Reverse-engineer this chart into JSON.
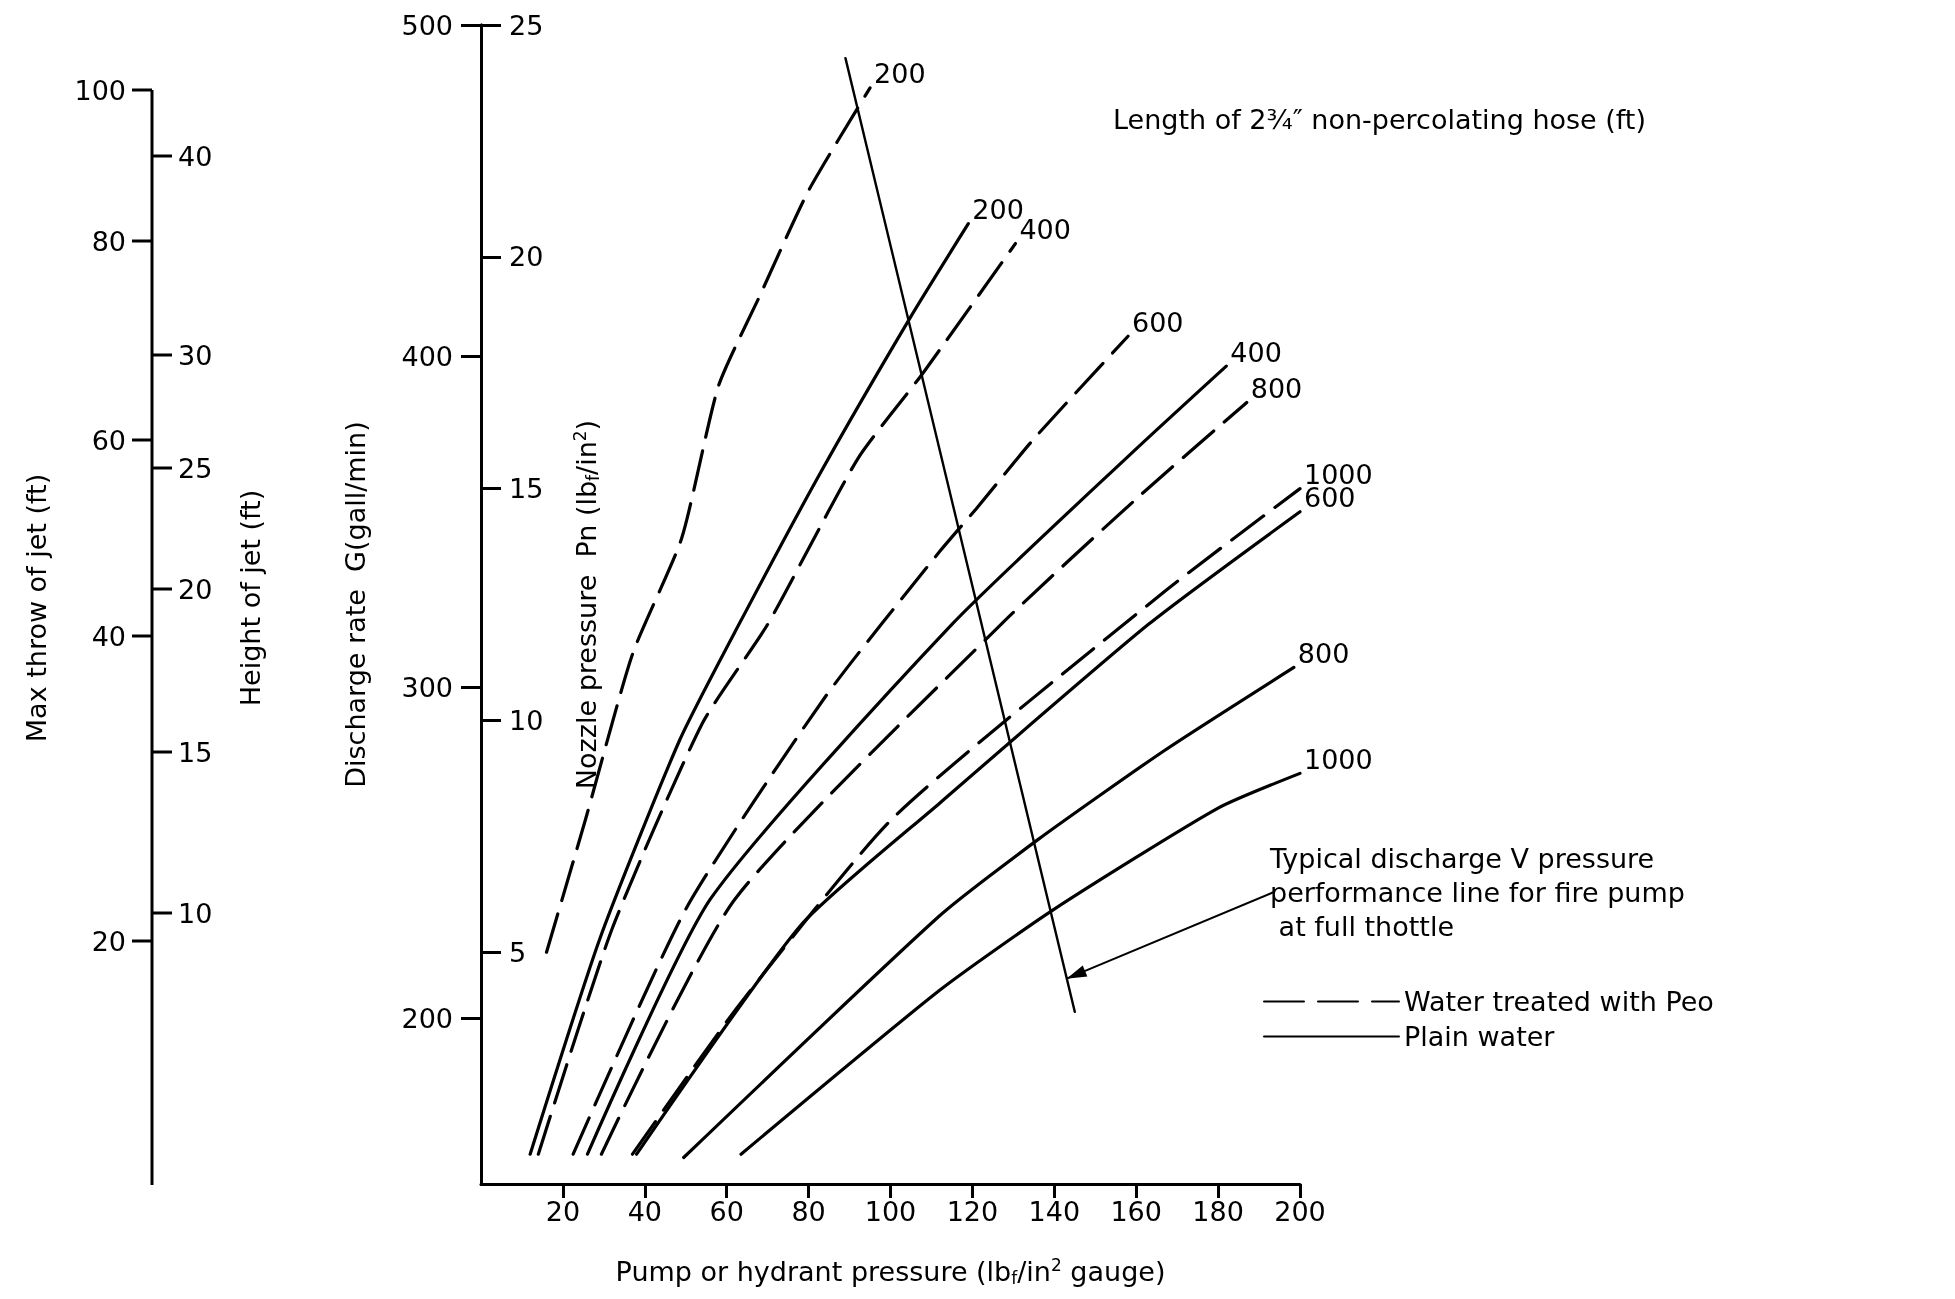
{
  "chart_data": {
    "type": "line",
    "xlabel": "Pump or hydrant pressure (lb$_{f}$/in$^{2}$ gauge)",
    "ylabel": "Discharge rate  G(gall/min)",
    "y2label": "Nozzle pressure  Pn (lb$_{f}$/in$^{2}$)",
    "legend_title": "Length of 2¾″ non-percolating hose (ft)",
    "xlim": [
      0,
      200
    ],
    "xticks": [
      20,
      40,
      60,
      80,
      100,
      120,
      140,
      160,
      180,
      200
    ],
    "ylim": [
      150,
      500
    ],
    "yticks": [
      200,
      300,
      400,
      500
    ],
    "y2lim": [
      0,
      25
    ],
    "y2ticks": [
      5,
      10,
      15,
      20,
      25
    ],
    "grid": false,
    "legend": "bottom right",
    "annotations": [
      {
        "text": "Typical discharge V pressure performance line for fire pump at full thottle",
        "x": 143,
        "y": 212
      },
      "Height of jet (ft)",
      "10",
      "15",
      "20",
      "25",
      "30",
      "40",
      "Max throw of jet (ft)",
      "20",
      "40",
      "60",
      "80",
      "100"
    ],
    "series": [
      {
        "name": "200",
        "color": "#000000",
        "line_style": "dashed",
        "x": [
          16,
          25.5,
          37,
          49,
          58,
          68,
          80,
          95
        ],
        "values": [
          220,
          260,
          310,
          345,
          391,
          418,
          450,
          481
        ]
      },
      {
        "name": "200",
        "color": "#000000",
        "line_style": "solid",
        "x": [
          12,
          29,
          48.5,
          63,
          83,
          105,
          119
        ],
        "values": [
          159,
          224,
          284,
          319,
          365,
          412,
          440
        ]
      },
      {
        "name": "400",
        "color": "#000000",
        "line_style": "dashed",
        "x": [
          14,
          32,
          54,
          70,
          92,
          108,
          130.5
        ],
        "values": [
          159,
          227,
          289,
          319,
          369,
          395,
          434
        ]
      },
      {
        "name": "600",
        "color": "#000000",
        "line_style": "dashed",
        "x": [
          22.5,
          50,
          84,
          112,
          121,
          135,
          158
        ],
        "values": [
          159,
          233,
          297,
          341,
          354,
          375,
          406
        ]
      },
      {
        "name": "400",
        "color": "#000000",
        "line_style": "solid",
        "x": [
          26,
          56,
          115,
          160,
          182
        ],
        "values": [
          159,
          236,
          319,
          372,
          397
        ]
      },
      {
        "name": "800",
        "color": "#000000",
        "line_style": "dashed",
        "x": [
          29.4,
          62,
          127,
          161,
          187
        ],
        "values": [
          159,
          236,
          319,
          358,
          386
        ]
      },
      {
        "name": "1000",
        "color": "#000000",
        "line_style": "dashed",
        "x": [
          37,
          63,
          101,
          167,
          200
        ],
        "values": [
          159,
          204,
          261,
          329,
          360
        ]
      },
      {
        "name": "600",
        "color": "#000000",
        "line_style": "solid",
        "x": [
          38,
          78,
          112,
          163,
          200
        ],
        "values": [
          159,
          228,
          265,
          319,
          353
        ]
      },
      {
        "name": "800",
        "color": "#000000",
        "line_style": "solid",
        "x": [
          49.5,
          112,
          136,
          167,
          198.5
        ],
        "values": [
          158,
          231,
          254,
          281,
          306
        ]
      },
      {
        "name": "1000",
        "color": "#000000",
        "line_style": "solid",
        "x": [
          63.5,
          112,
          140,
          180,
          200
        ],
        "values": [
          159,
          208.5,
          233,
          263.5,
          274
        ]
      },
      {
        "color": "#000000",
        "line_style": "solid",
        "x": [
          89,
          145
        ],
        "values": [
          490,
          202
        ]
      },
      {
        "name": "Water treated with Peo",
        "color": "#000000",
        "line_style": "dashed"
      },
      {
        "name": "Plain water",
        "color": "#000000",
        "line_style": "solid"
      }
    ]
  }
}
